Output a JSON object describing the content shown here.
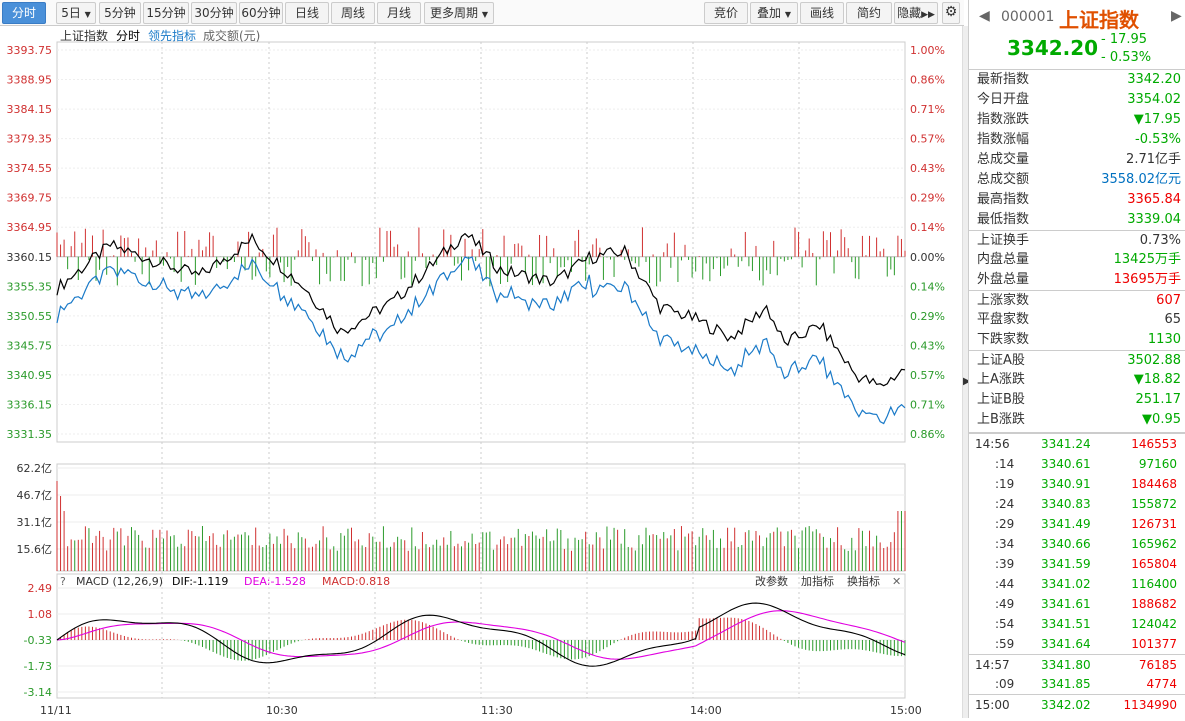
{
  "toolbar": {
    "tabs": [
      "分时",
      "5日",
      "5分钟",
      "15分钟",
      "30分钟",
      "60分钟",
      "日线",
      "周线",
      "月线",
      "更多周期"
    ],
    "right_buttons": [
      "竞价",
      "叠加",
      "画线",
      "简约",
      "隐藏"
    ]
  },
  "chart": {
    "legend": {
      "name": "上证指数",
      "mode": "分时",
      "lead": "领先指标",
      "amount": "成交额(元)"
    },
    "price_labels": [
      "3393.75",
      "3388.95",
      "3384.15",
      "3379.35",
      "3374.55",
      "3369.75",
      "3364.95",
      "3360.15",
      "3355.35",
      "3350.55",
      "3345.75",
      "3340.95",
      "3336.15",
      "3331.35"
    ],
    "pct_labels": [
      "1.00%",
      "0.86%",
      "0.71%",
      "0.57%",
      "0.43%",
      "0.29%",
      "0.14%",
      "0.00%",
      "0.14%",
      "0.29%",
      "0.43%",
      "0.57%",
      "0.71%",
      "0.86%"
    ],
    "vol_labels": [
      "62.2亿",
      "46.7亿",
      "31.1亿",
      "15.6亿"
    ],
    "macd": {
      "title": "MACD (12,26,9)",
      "dif": "DIF:-1.119",
      "dea": "DEA:-1.528",
      "macd": "MACD:0.818",
      "btn1": "改参数",
      "btn2": "加指标",
      "btn3": "换指标",
      "labels": [
        "2.49",
        "1.08",
        "-0.33",
        "-1.73",
        "-3.14"
      ]
    },
    "time_labels": [
      "11/11",
      "10:30",
      "11:30",
      "14:00",
      "15:00"
    ],
    "colors": {
      "price": "#000000",
      "lead": "#1a7ac8",
      "up": "#d03030",
      "down": "#2a9a2a",
      "dif": "#000000",
      "dea": "#e000e0"
    }
  },
  "sidebar": {
    "code": "000001",
    "name": "上证指数",
    "price": "3342.20",
    "change": "- 17.95",
    "pct": "- 0.53%",
    "stats": [
      {
        "l": "最新指数",
        "v": "3342.20",
        "c": "green"
      },
      {
        "l": "今日开盘",
        "v": "3354.02",
        "c": "green"
      },
      {
        "l": "指数涨跌",
        "v": "▼17.95",
        "c": "green"
      },
      {
        "l": "指数涨幅",
        "v": "-0.53%",
        "c": "green"
      },
      {
        "l": "总成交量",
        "v": "2.71亿手",
        "c": "black"
      },
      {
        "l": "总成交额",
        "v": "3558.02亿元",
        "c": "blue"
      },
      {
        "l": "最高指数",
        "v": "3365.84",
        "c": "red"
      },
      {
        "l": "最低指数",
        "v": "3339.04",
        "c": "green"
      }
    ],
    "stats2": [
      {
        "l": "上证换手",
        "v": "0.73%",
        "c": "black"
      },
      {
        "l": "内盘总量",
        "v": "13425万手",
        "c": "green"
      },
      {
        "l": "外盘总量",
        "v": "13695万手",
        "c": "red"
      }
    ],
    "stats3": [
      {
        "l": "上涨家数",
        "v": "607",
        "c": "red"
      },
      {
        "l": "平盘家数",
        "v": "65",
        "c": "black"
      },
      {
        "l": "下跌家数",
        "v": "1130",
        "c": "green"
      }
    ],
    "stats4": [
      {
        "l": "上证A股",
        "v": "3502.88",
        "c": "green"
      },
      {
        "l": "上A涨跌",
        "v": "▼18.82",
        "c": "green"
      },
      {
        "l": "上证B股",
        "v": "251.17",
        "c": "green"
      },
      {
        "l": "上B涨跌",
        "v": "▼0.95",
        "c": "green"
      }
    ],
    "ticks": [
      {
        "t": "14:56",
        "p": "3341.24",
        "v": "146553",
        "c": "red"
      },
      {
        "t": ":14",
        "p": "3340.61",
        "v": "97160",
        "c": "green"
      },
      {
        "t": ":19",
        "p": "3340.91",
        "v": "184468",
        "c": "red"
      },
      {
        "t": ":24",
        "p": "3340.83",
        "v": "155872",
        "c": "green"
      },
      {
        "t": ":29",
        "p": "3341.49",
        "v": "126731",
        "c": "red"
      },
      {
        "t": ":34",
        "p": "3340.66",
        "v": "165962",
        "c": "green"
      },
      {
        "t": ":39",
        "p": "3341.59",
        "v": "165804",
        "c": "red"
      },
      {
        "t": ":44",
        "p": "3341.02",
        "v": "116400",
        "c": "green"
      },
      {
        "t": ":49",
        "p": "3341.61",
        "v": "188682",
        "c": "red"
      },
      {
        "t": ":54",
        "p": "3341.51",
        "v": "124042",
        "c": "green"
      },
      {
        "t": ":59",
        "p": "3341.64",
        "v": "101377",
        "c": "red"
      }
    ],
    "ticks2": [
      {
        "t": "14:57",
        "p": "3341.80",
        "v": "76185",
        "c": "red"
      },
      {
        "t": ":09",
        "p": "3341.85",
        "v": "4774",
        "c": "red"
      }
    ],
    "ticks3": [
      {
        "t": "15:00",
        "p": "3342.02",
        "v": "1134990",
        "c": "red"
      }
    ]
  }
}
